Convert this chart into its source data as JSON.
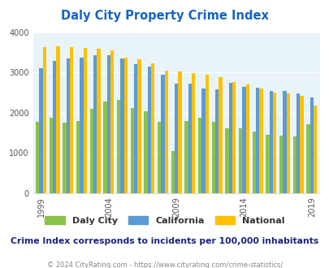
{
  "title": "Daly City Property Crime Index",
  "subtitle": "Crime Index corresponds to incidents per 100,000 inhabitants",
  "footer": "© 2024 CityRating.com - https://www.cityrating.com/crime-statistics/",
  "years": [
    1999,
    2000,
    2001,
    2002,
    2003,
    2004,
    2005,
    2006,
    2007,
    2008,
    2009,
    2010,
    2011,
    2012,
    2013,
    2014,
    2015,
    2016,
    2017,
    2018,
    2019
  ],
  "daly_city": [
    1760,
    1870,
    1750,
    1780,
    2100,
    2280,
    2320,
    2120,
    2040,
    1760,
    1050,
    1780,
    1870,
    1760,
    1600,
    1610,
    1520,
    1450,
    1430,
    1410,
    1700
  ],
  "california": [
    3100,
    3280,
    3340,
    3360,
    3420,
    3420,
    3350,
    3200,
    3150,
    2940,
    2720,
    2720,
    2590,
    2580,
    2730,
    2630,
    2620,
    2540,
    2530,
    2470,
    2380
  ],
  "national": [
    3620,
    3650,
    3620,
    3600,
    3580,
    3540,
    3360,
    3330,
    3230,
    3050,
    3020,
    2980,
    2940,
    2890,
    2760,
    2700,
    2590,
    2500,
    2480,
    2420,
    2180
  ],
  "bar_colors": {
    "daly_city": "#8bc34a",
    "california": "#5b9bd5",
    "national": "#ffc000"
  },
  "bg_color": "#e8f4f8",
  "ylim": [
    0,
    4000
  ],
  "yticks": [
    0,
    1000,
    2000,
    3000,
    4000
  ],
  "xtick_years": [
    1999,
    2004,
    2009,
    2014,
    2019
  ],
  "title_color": "#1565c0",
  "subtitle_color": "#1a237e",
  "footer_color": "#888888"
}
